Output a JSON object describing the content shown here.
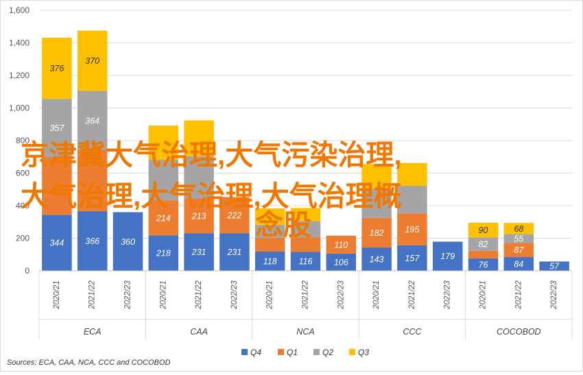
{
  "chart_data": {
    "type": "bar",
    "stacked": true,
    "groups": [
      "ECA",
      "CAA",
      "NCA",
      "CCC",
      "COCOBOD"
    ],
    "categories": [
      {
        "group": "ECA",
        "label": "2020/21"
      },
      {
        "group": "ECA",
        "label": "2021/22"
      },
      {
        "group": "ECA",
        "label": "2022/23"
      },
      {
        "group": "CAA",
        "label": "2020/21"
      },
      {
        "group": "CAA",
        "label": "2021/22"
      },
      {
        "group": "CAA",
        "label": "2022/23"
      },
      {
        "group": "NCA",
        "label": "2020/21"
      },
      {
        "group": "NCA",
        "label": "2021/22"
      },
      {
        "group": "NCA",
        "label": "2022/23"
      },
      {
        "group": "CCC",
        "label": "2020/21"
      },
      {
        "group": "CCC",
        "label": "2021/22"
      },
      {
        "group": "CCC",
        "label": "2022/23"
      },
      {
        "group": "COCOBOD",
        "label": "2020/21"
      },
      {
        "group": "COCOBOD",
        "label": "2021/22"
      },
      {
        "group": "COCOBOD",
        "label": "2022/23"
      }
    ],
    "series": [
      {
        "name": "Q4",
        "color": "#4472c4",
        "values": [
          344,
          366,
          360,
          218,
          231,
          231,
          118,
          116,
          106,
          143,
          157,
          179,
          76,
          84,
          57
        ],
        "labels": [
          "344",
          "366",
          "360",
          "218",
          "231",
          "231",
          "118",
          "116",
          "106",
          "143",
          "157",
          "179",
          "76",
          "84",
          "57"
        ]
      },
      {
        "name": "Q1",
        "color": "#ed7d31",
        "values": [
          355,
          375,
          0,
          214,
          213,
          222,
          85,
          90,
          110,
          182,
          195,
          0,
          47,
          87,
          0
        ],
        "labels": [
          "",
          "",
          "",
          "214",
          "213",
          "222",
          "",
          "",
          "110",
          "182",
          "195",
          "",
          "",
          "87",
          ""
        ]
      },
      {
        "name": "Q2",
        "color": "#a5a5a5",
        "values": [
          357,
          364,
          0,
          250,
          260,
          0,
          80,
          100,
          0,
          180,
          170,
          0,
          82,
          55,
          0
        ],
        "labels": [
          "357",
          "364",
          "",
          "",
          "",
          "",
          "",
          "",
          "",
          "",
          "",
          "",
          "82",
          "55",
          ""
        ]
      },
      {
        "name": "Q3",
        "color": "#ffc000",
        "values": [
          376,
          370,
          0,
          210,
          220,
          0,
          100,
          80,
          0,
          150,
          140,
          0,
          90,
          68,
          0
        ],
        "labels": [
          "376",
          "370",
          "",
          "",
          "",
          "",
          "",
          "",
          "",
          "",
          "",
          "",
          "90",
          "68",
          ""
        ]
      }
    ],
    "yticks": [
      "0",
      "200",
      "400",
      "600",
      "800",
      "1,000",
      "1,200",
      "1,400",
      "1,600"
    ],
    "ylim": [
      0,
      1600
    ],
    "grid": true,
    "legend": "bottom",
    "source": "Sources: ECA, CAA, NCA, CCC and COCOBOD",
    "overlay_text": [
      "京津冀大气治理,大气污染治理,",
      "大气治理,大气治理,大气治理概",
      "念股"
    ]
  }
}
